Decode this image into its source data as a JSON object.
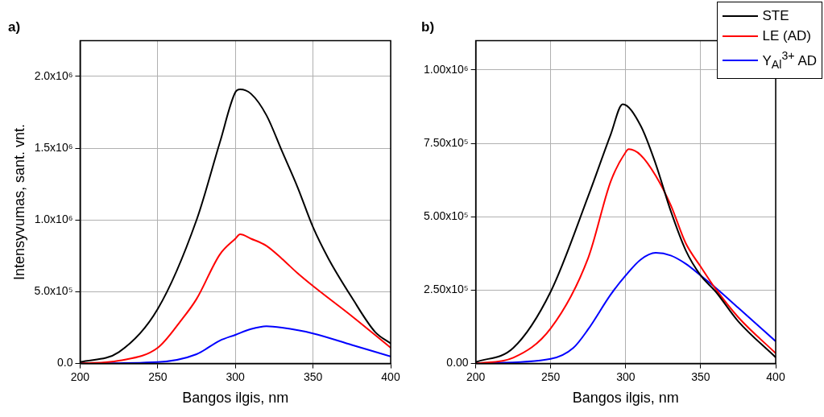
{
  "chart_data": [
    {
      "type": "line",
      "title": "a)",
      "xlabel": "Bangos ilgis, nm",
      "ylabel": "Intensyvumas, sant. vnt.",
      "xlim": [
        200,
        400
      ],
      "xticks": [
        200,
        250,
        300,
        350,
        400
      ],
      "ylim": [
        0,
        2250000
      ],
      "yticks": [
        {
          "value": 0,
          "label": "0.0"
        },
        {
          "value": 500000,
          "label": "5.0x10⁵"
        },
        {
          "value": 1000000,
          "label": "1.0x10⁶"
        },
        {
          "value": 1500000,
          "label": "1.5x10⁶"
        },
        {
          "value": 2000000,
          "label": "2.0x10⁶"
        }
      ],
      "grid": true,
      "marker": "none",
      "legend": false,
      "series": [
        {
          "color": "#000000",
          "x": [
            200,
            225,
            250,
            275,
            290,
            300,
            303,
            310,
            320,
            330,
            340,
            350,
            360,
            375,
            390,
            400
          ],
          "values": [
            10000,
            80000,
            380000,
            1000000,
            1540000,
            1890000,
            1910000,
            1880000,
            1730000,
            1480000,
            1230000,
            950000,
            730000,
            460000,
            220000,
            140000
          ]
        },
        {
          "color": "#ff0000",
          "x": [
            200,
            225,
            250,
            265,
            275,
            290,
            300,
            303,
            310,
            320,
            330,
            340,
            350,
            375,
            400
          ],
          "values": [
            0,
            20000,
            110000,
            300000,
            450000,
            760000,
            870000,
            900000,
            870000,
            820000,
            730000,
            630000,
            540000,
            330000,
            110000
          ]
        },
        {
          "color": "#0000ff",
          "x": [
            200,
            250,
            275,
            290,
            300,
            310,
            320,
            330,
            350,
            375,
            400
          ],
          "values": [
            0,
            10000,
            65000,
            160000,
            200000,
            240000,
            260000,
            250000,
            210000,
            130000,
            50000
          ]
        }
      ]
    },
    {
      "type": "line",
      "title": "b)",
      "xlabel": "Bangos ilgis, nm",
      "xlim": [
        200,
        400
      ],
      "xticks": [
        200,
        250,
        300,
        350,
        400
      ],
      "ylim": [
        0,
        1100000
      ],
      "yticks": [
        {
          "value": 0,
          "label": "0.00"
        },
        {
          "value": 250000,
          "label": "2.50x10⁵"
        },
        {
          "value": 500000,
          "label": "5.00x10⁵"
        },
        {
          "value": 750000,
          "label": "7.50x10⁵"
        },
        {
          "value": 1000000,
          "label": "1.00x10⁶"
        }
      ],
      "grid": true,
      "marker": "none",
      "legend": "top right",
      "series": [
        {
          "name": "STE",
          "color": "#000000",
          "x": [
            200,
            225,
            250,
            275,
            290,
            298,
            310,
            320,
            330,
            340,
            350,
            360,
            375,
            400
          ],
          "values": [
            5000,
            53000,
            245000,
            570000,
            780000,
            883000,
            810000,
            680000,
            520000,
            386000,
            300000,
            245000,
            144000,
            21000
          ]
        },
        {
          "name": "LE (AD)",
          "color": "#ff0000",
          "x": [
            200,
            225,
            250,
            275,
            290,
            300,
            302,
            310,
            320,
            330,
            340,
            350,
            360,
            375,
            400
          ],
          "values": [
            0,
            20000,
            120000,
            360000,
            620000,
            720000,
            730000,
            710000,
            640000,
            540000,
            410000,
            330000,
            254000,
            158000,
            35000
          ]
        },
        {
          "name": "Y$_{Al}$$^{3+}$ AD",
          "color": "#0000ff",
          "x": [
            200,
            250,
            265,
            275,
            290,
            300,
            310,
            320,
            330,
            340,
            350,
            360,
            375,
            400
          ],
          "values": [
            0,
            16000,
            53000,
            117000,
            235000,
            300000,
            354000,
            377000,
            368000,
            340000,
            300000,
            258000,
            190000,
            76000
          ]
        }
      ]
    }
  ]
}
